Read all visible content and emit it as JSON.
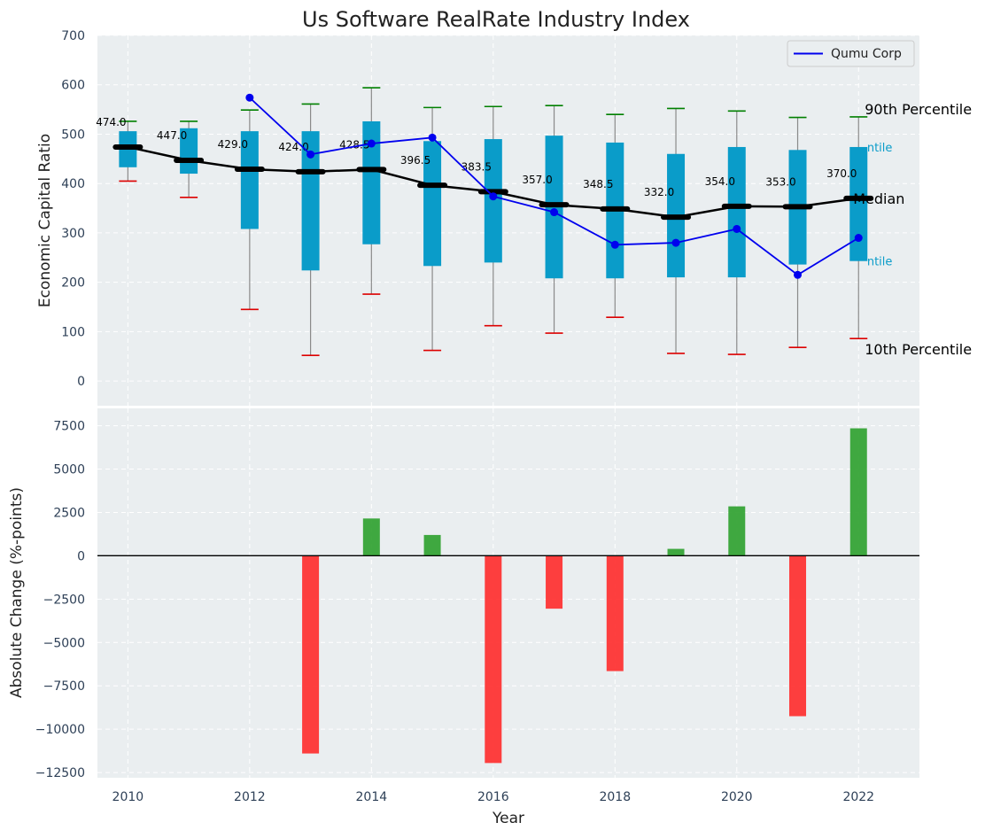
{
  "chart_data": [
    {
      "type": "box",
      "title": "Us Software RealRate Industry Index",
      "ylabel": "Economic Capital Ratio",
      "ylim": [
        -50,
        700
      ],
      "yticks": [
        0,
        100,
        200,
        300,
        400,
        500,
        600,
        700
      ],
      "x": [
        2010,
        2011,
        2012,
        2013,
        2014,
        2015,
        2016,
        2017,
        2018,
        2019,
        2020,
        2021,
        2022
      ],
      "p10": [
        405,
        372,
        145,
        52,
        176,
        62,
        112,
        97,
        129,
        56,
        54,
        68,
        86
      ],
      "p25": [
        433,
        420,
        308,
        224,
        277,
        233,
        240,
        208,
        208,
        210,
        210,
        236,
        243
      ],
      "median": [
        474.0,
        447.0,
        429.0,
        424.0,
        428.5,
        396.5,
        383.5,
        357.0,
        348.5,
        332.0,
        354.0,
        353.0,
        370.0
      ],
      "median_labels": [
        "474.0",
        "447.0",
        "429.0",
        "424.0",
        "428.5",
        "396.5",
        "383.5",
        "357.0",
        "348.5",
        "332.0",
        "354.0",
        "353.0",
        "370.0"
      ],
      "p75": [
        506,
        512,
        506,
        506,
        526,
        486,
        490,
        497,
        483,
        460,
        474,
        468,
        474
      ],
      "p90": [
        526,
        526,
        549,
        561,
        594,
        554,
        556,
        558,
        540,
        552,
        547,
        534,
        535
      ],
      "series": [
        {
          "name": "Qumu Corp",
          "x": [
            2012,
            2013,
            2014,
            2015,
            2016,
            2017,
            2018,
            2019,
            2020,
            2021,
            2022
          ],
          "values": [
            574,
            459,
            481,
            493,
            374,
            342,
            276,
            280,
            308,
            215,
            290
          ]
        }
      ],
      "annotations": {
        "p90": "90th Percentile",
        "p75": "75th Percentile",
        "median": "Median",
        "p25": "25th Percentile",
        "p10": "10th Percentile"
      },
      "legend": {
        "position": "top-right"
      },
      "grid": true,
      "colors": {
        "box": "#0a9cc9",
        "median": "#000000",
        "line": "#0000ee",
        "p90": "#008000",
        "p10": "#dd0000",
        "whisker": "#8a8a8a",
        "plot_bg": "#eaeef0"
      }
    },
    {
      "type": "bar",
      "ylabel": "Absolute Change (%-points)",
      "xlabel": "Year",
      "ylim": [
        -12800,
        8500
      ],
      "yticks": [
        -12500,
        -10000,
        -7500,
        -5000,
        -2500,
        0,
        2500,
        5000,
        7500
      ],
      "ytick_labels": [
        "−12500",
        "−10000",
        "−7500",
        "−5000",
        "−2500",
        "0",
        "2500",
        "5000",
        "7500"
      ],
      "xticks": [
        2010,
        2012,
        2014,
        2016,
        2018,
        2020,
        2022
      ],
      "x": [
        2013,
        2014,
        2015,
        2016,
        2017,
        2018,
        2019,
        2020,
        2021,
        2022
      ],
      "values": [
        -11400,
        2150,
        1200,
        -11950,
        -3050,
        -6650,
        400,
        2850,
        -9250,
        7350
      ],
      "colors": {
        "positive": "#2ca02c",
        "negative": "#ff2a2a"
      }
    }
  ]
}
